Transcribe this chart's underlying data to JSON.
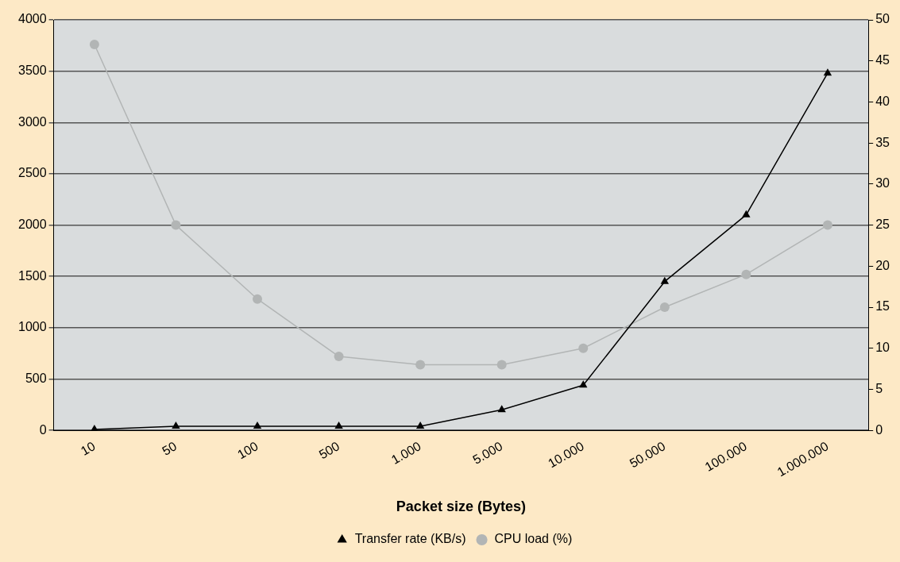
{
  "chart_data": {
    "type": "line",
    "xlabel": "Packet size (Bytes)",
    "categories": [
      "10",
      "50",
      "100",
      "500",
      "1.000",
      "5.000",
      "10.000",
      "50.000",
      "100.000",
      "1.000.000"
    ],
    "series": [
      {
        "name": "Transfer rate (KB/s)",
        "color": "#000000",
        "marker": "triangle",
        "values": [
          10,
          40,
          40,
          40,
          40,
          200,
          440,
          1450,
          2100,
          3480
        ]
      },
      {
        "name": "CPU load (%)",
        "color": "#b2b5b5",
        "marker": "circle",
        "axis": "y2",
        "values": [
          47,
          25,
          16,
          9,
          8,
          8,
          10,
          15,
          19,
          25
        ]
      }
    ],
    "ylim": [
      0,
      4000
    ],
    "yticks": [
      0,
      500,
      1000,
      1500,
      2000,
      2500,
      3000,
      3500,
      4000
    ],
    "y2lim": [
      0,
      50
    ],
    "y2ticks": [
      0,
      5,
      10,
      15,
      20,
      25,
      30,
      35,
      40,
      45,
      50
    ],
    "grid": "y",
    "legend": "bottom",
    "line_style": "solid"
  }
}
